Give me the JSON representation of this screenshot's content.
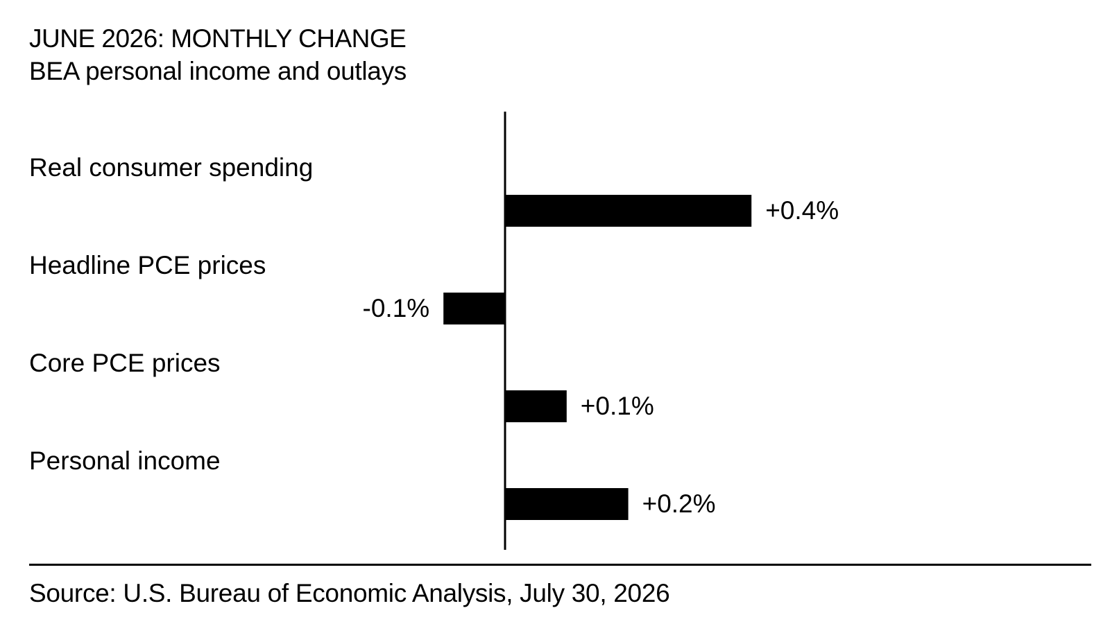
{
  "header": {
    "title": "JUNE 2026: MONTHLY CHANGE",
    "subtitle": "BEA personal income and outlays"
  },
  "footer": {
    "source": "Source: U.S. Bureau of Economic Analysis, July 30, 2026"
  },
  "colors": {
    "bar": "#000000",
    "text": "#000000",
    "background": "#ffffff"
  },
  "chart_data": {
    "type": "bar",
    "orientation": "horizontal",
    "title": "JUNE 2026: MONTHLY CHANGE",
    "subtitle": "BEA personal income and outlays",
    "categories": [
      "Real consumer spending",
      "Headline PCE prices",
      "Core PCE prices",
      "Personal income"
    ],
    "values": [
      0.4,
      -0.1,
      0.1,
      0.2
    ],
    "value_labels": [
      "+0.4%",
      "-0.1%",
      "+0.1%",
      "+0.2%"
    ],
    "unit": "%",
    "xlabel": "",
    "ylabel": "",
    "grid": false,
    "legend": "none",
    "source": "Source: U.S. Bureau of Economic Analysis, July 30, 2026"
  }
}
